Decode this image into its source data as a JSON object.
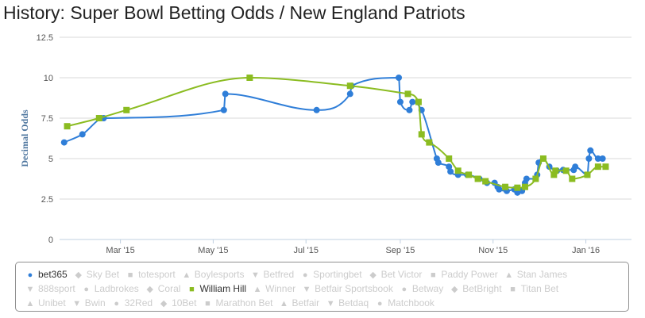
{
  "title": "History: Super Bowl Betting Odds / New England Patriots",
  "chart_data": {
    "type": "line",
    "title": "History: Super Bowl Betting Odds / New England Patriots",
    "ylabel": "Decimal Odds",
    "xlabel": "",
    "ylim": [
      0,
      12.5
    ],
    "yticks": [
      "0",
      "2.5",
      "5",
      "7.5",
      "10",
      "12.5"
    ],
    "xlim": [
      "2015-01-20",
      "2016-01-31"
    ],
    "xticks": [
      {
        "label": "Mar '15",
        "date": "2015-03-01"
      },
      {
        "label": "May '15",
        "date": "2015-05-01"
      },
      {
        "label": "Jul '15",
        "date": "2015-07-01"
      },
      {
        "label": "Sep '15",
        "date": "2015-09-01"
      },
      {
        "label": "Nov '15",
        "date": "2015-11-01"
      },
      {
        "label": "Jan '16",
        "date": "2016-01-01"
      }
    ],
    "grid": true,
    "series": [
      {
        "name": "bet365",
        "color": "#2f7ed8",
        "marker": "circle",
        "points": [
          [
            "2015-01-23",
            6.0
          ],
          [
            "2015-02-04",
            6.5
          ],
          [
            "2015-02-18",
            7.5
          ],
          [
            "2015-05-08",
            8.0
          ],
          [
            "2015-05-09",
            9.0
          ],
          [
            "2015-07-08",
            8.0
          ],
          [
            "2015-07-30",
            9.0
          ],
          [
            "2015-07-31",
            9.5
          ],
          [
            "2015-08-31",
            10.0
          ],
          [
            "2015-09-01",
            8.5
          ],
          [
            "2015-09-07",
            8.0
          ],
          [
            "2015-09-09",
            8.5
          ],
          [
            "2015-09-15",
            8.0
          ],
          [
            "2015-09-25",
            5.0
          ],
          [
            "2015-09-26",
            4.75
          ],
          [
            "2015-10-03",
            4.5
          ],
          [
            "2015-10-04",
            4.2
          ],
          [
            "2015-10-09",
            4.0
          ],
          [
            "2015-10-15",
            4.0
          ],
          [
            "2015-10-23",
            3.75
          ],
          [
            "2015-10-28",
            3.5
          ],
          [
            "2015-11-02",
            3.5
          ],
          [
            "2015-11-04",
            3.25
          ],
          [
            "2015-11-05",
            3.1
          ],
          [
            "2015-11-10",
            3.0
          ],
          [
            "2015-11-15",
            3.1
          ],
          [
            "2015-11-17",
            2.9
          ],
          [
            "2015-11-20",
            3.0
          ],
          [
            "2015-11-22",
            3.5
          ],
          [
            "2015-11-23",
            3.75
          ],
          [
            "2015-11-29",
            3.75
          ],
          [
            "2015-11-30",
            4.0
          ],
          [
            "2015-12-01",
            4.75
          ],
          [
            "2015-12-04",
            5.0
          ],
          [
            "2015-12-08",
            4.5
          ],
          [
            "2015-12-13",
            4.25
          ],
          [
            "2015-12-17",
            4.3
          ],
          [
            "2015-12-24",
            4.3
          ],
          [
            "2015-12-25",
            4.5
          ],
          [
            "2016-01-02",
            4.0
          ],
          [
            "2016-01-03",
            5.0
          ],
          [
            "2016-01-04",
            5.5
          ],
          [
            "2016-01-09",
            5.0
          ],
          [
            "2016-01-12",
            5.0
          ]
        ]
      },
      {
        "name": "William Hill",
        "color": "#8bbc21",
        "marker": "square",
        "points": [
          [
            "2015-01-25",
            7.0
          ],
          [
            "2015-02-15",
            7.5
          ],
          [
            "2015-03-05",
            8.0
          ],
          [
            "2015-05-25",
            10.0
          ],
          [
            "2015-07-30",
            9.5
          ],
          [
            "2015-09-06",
            9.0
          ],
          [
            "2015-09-13",
            8.5
          ],
          [
            "2015-09-15",
            6.5
          ],
          [
            "2015-09-20",
            6.0
          ],
          [
            "2015-10-03",
            5.0
          ],
          [
            "2015-10-09",
            4.25
          ],
          [
            "2015-10-16",
            4.0
          ],
          [
            "2015-10-22",
            3.75
          ],
          [
            "2015-10-27",
            3.6
          ],
          [
            "2015-11-09",
            3.25
          ],
          [
            "2015-11-17",
            3.2
          ],
          [
            "2015-11-22",
            3.25
          ],
          [
            "2015-11-29",
            3.75
          ],
          [
            "2015-12-04",
            5.0
          ],
          [
            "2015-12-11",
            4.0
          ],
          [
            "2015-12-12",
            4.25
          ],
          [
            "2015-12-19",
            4.25
          ],
          [
            "2015-12-23",
            3.75
          ],
          [
            "2016-01-02",
            4.0
          ],
          [
            "2016-01-09",
            4.5
          ],
          [
            "2016-01-14",
            4.5
          ]
        ]
      }
    ]
  },
  "legend": {
    "rows": [
      [
        {
          "label": "bet365",
          "symbol": "●",
          "enabled": true,
          "color": "#2f7ed8"
        },
        {
          "label": "Sky Bet",
          "symbol": "◆",
          "enabled": false
        },
        {
          "label": "totesport",
          "symbol": "■",
          "enabled": false
        },
        {
          "label": "Boylesports",
          "symbol": "▲",
          "enabled": false
        },
        {
          "label": "Betfred",
          "symbol": "▼",
          "enabled": false
        },
        {
          "label": "Sportingbet",
          "symbol": "●",
          "enabled": false
        },
        {
          "label": "Bet Victor",
          "symbol": "◆",
          "enabled": false
        },
        {
          "label": "Paddy Power",
          "symbol": "■",
          "enabled": false
        },
        {
          "label": "Stan James",
          "symbol": "▲",
          "enabled": false
        }
      ],
      [
        {
          "label": "888sport",
          "symbol": "▼",
          "enabled": false
        },
        {
          "label": "Ladbrokes",
          "symbol": "●",
          "enabled": false
        },
        {
          "label": "Coral",
          "symbol": "◆",
          "enabled": false
        },
        {
          "label": "William Hill",
          "symbol": "■",
          "enabled": true,
          "color": "#8bbc21"
        },
        {
          "label": "Winner",
          "symbol": "▲",
          "enabled": false
        },
        {
          "label": "Betfair Sportsbook",
          "symbol": "▼",
          "enabled": false
        },
        {
          "label": "Betway",
          "symbol": "●",
          "enabled": false
        },
        {
          "label": "BetBright",
          "symbol": "◆",
          "enabled": false
        },
        {
          "label": "Titan Bet",
          "symbol": "■",
          "enabled": false
        }
      ],
      [
        {
          "label": "Unibet",
          "symbol": "▲",
          "enabled": false
        },
        {
          "label": "Bwin",
          "symbol": "▼",
          "enabled": false
        },
        {
          "label": "32Red",
          "symbol": "●",
          "enabled": false
        },
        {
          "label": "10Bet",
          "symbol": "◆",
          "enabled": false
        },
        {
          "label": "Marathon Bet",
          "symbol": "■",
          "enabled": false
        },
        {
          "label": "Betfair",
          "symbol": "▲",
          "enabled": false
        },
        {
          "label": "Betdaq",
          "symbol": "▼",
          "enabled": false
        },
        {
          "label": "Matchbook",
          "symbol": "●",
          "enabled": false
        }
      ]
    ]
  }
}
